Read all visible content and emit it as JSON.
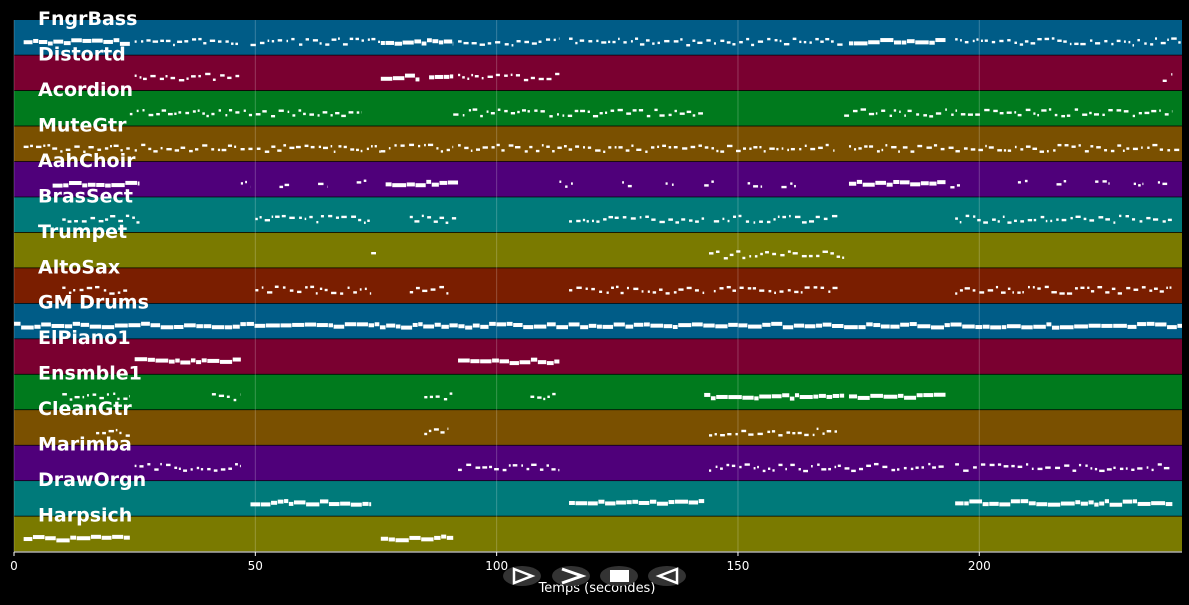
{
  "chart_data": {
    "type": "piano-roll",
    "xlabel": "Temps (secondes)",
    "xlim": [
      0,
      242
    ],
    "xticks": [
      0,
      50,
      100,
      150,
      200
    ],
    "grid": true,
    "tracks": [
      {
        "name": "FngrBass",
        "color": "#005c87",
        "segments": [
          [
            2,
            24,
            "dense"
          ],
          [
            25,
            47,
            "sparse"
          ],
          [
            49,
            76,
            "sparse"
          ],
          [
            76,
            91,
            "dense"
          ],
          [
            92,
            113,
            "sparse"
          ],
          [
            115,
            172,
            "sparse"
          ],
          [
            173,
            193,
            "dense"
          ],
          [
            195,
            242,
            "sparse"
          ]
        ]
      },
      {
        "name": "Distortd",
        "color": "#7a0030",
        "segments": [
          [
            25,
            47,
            "sparse"
          ],
          [
            76,
            84,
            "dense"
          ],
          [
            86,
            91,
            "dense"
          ],
          [
            92,
            113,
            "sparse"
          ],
          [
            238,
            240,
            "sparse"
          ]
        ]
      },
      {
        "name": "Acordion",
        "color": "#007a1d",
        "segments": [
          [
            24,
            72,
            "sparse"
          ],
          [
            91,
            143,
            "sparse"
          ],
          [
            172,
            240,
            "sparse"
          ]
        ]
      },
      {
        "name": "MuteGtr",
        "color": "#7a5000",
        "segments": [
          [
            2,
            24,
            "sparse"
          ],
          [
            25,
            76,
            "sparse"
          ],
          [
            76,
            91,
            "sparse"
          ],
          [
            92,
            170,
            "sparse"
          ],
          [
            173,
            242,
            "sparse"
          ]
        ]
      },
      {
        "name": "AahChoir",
        "color": "#4f007a",
        "segments": [
          [
            8,
            26,
            "dense"
          ],
          [
            47,
            49,
            "sparse"
          ],
          [
            55,
            57,
            "sparse"
          ],
          [
            63,
            65,
            "sparse"
          ],
          [
            71,
            73,
            "sparse"
          ],
          [
            77,
            92,
            "dense"
          ],
          [
            113,
            116,
            "sparse"
          ],
          [
            126,
            128,
            "sparse"
          ],
          [
            135,
            137,
            "sparse"
          ],
          [
            143,
            145,
            "sparse"
          ],
          [
            152,
            155,
            "sparse"
          ],
          [
            159,
            162,
            "sparse"
          ],
          [
            173,
            193,
            "dense"
          ],
          [
            194,
            196,
            "sparse"
          ],
          [
            208,
            210,
            "sparse"
          ],
          [
            216,
            218,
            "sparse"
          ],
          [
            224,
            227,
            "sparse"
          ],
          [
            232,
            234,
            "sparse"
          ],
          [
            237,
            239,
            "sparse"
          ]
        ]
      },
      {
        "name": "BrasSect",
        "color": "#007a7a",
        "segments": [
          [
            10,
            26,
            "sparse"
          ],
          [
            50,
            74,
            "sparse"
          ],
          [
            82,
            92,
            "sparse"
          ],
          [
            115,
            143,
            "sparse"
          ],
          [
            145,
            171,
            "sparse"
          ],
          [
            195,
            240,
            "sparse"
          ]
        ]
      },
      {
        "name": "Trumpet",
        "color": "#7a7a00",
        "segments": [
          [
            74,
            75,
            "sparse"
          ],
          [
            144,
            172,
            "sparse"
          ]
        ]
      },
      {
        "name": "AltoSax",
        "color": "#7a1e00",
        "segments": [
          [
            10,
            24,
            "sparse"
          ],
          [
            50,
            74,
            "sparse"
          ],
          [
            82,
            90,
            "sparse"
          ],
          [
            115,
            143,
            "sparse"
          ],
          [
            145,
            171,
            "sparse"
          ],
          [
            195,
            240,
            "sparse"
          ]
        ]
      },
      {
        "name": "GM Drums",
        "color": "#005c87",
        "segments": [
          [
            0,
            242,
            "dense"
          ]
        ]
      },
      {
        "name": "ElPiano1",
        "color": "#7a0030",
        "segments": [
          [
            25,
            47,
            "dense"
          ],
          [
            92,
            113,
            "dense"
          ]
        ]
      },
      {
        "name": "Ensmble1",
        "color": "#007a1d",
        "segments": [
          [
            10,
            24,
            "sparse"
          ],
          [
            41,
            47,
            "sparse"
          ],
          [
            85,
            91,
            "sparse"
          ],
          [
            107,
            113,
            "sparse"
          ],
          [
            143,
            172,
            "dense"
          ],
          [
            173,
            193,
            "dense"
          ]
        ]
      },
      {
        "name": "CleanGtr",
        "color": "#7a5000",
        "segments": [
          [
            17,
            24,
            "sparse"
          ],
          [
            85,
            90,
            "sparse"
          ],
          [
            144,
            171,
            "sparse"
          ]
        ]
      },
      {
        "name": "Marimba",
        "color": "#4f007a",
        "segments": [
          [
            25,
            47,
            "sparse"
          ],
          [
            92,
            113,
            "sparse"
          ],
          [
            144,
            193,
            "sparse"
          ],
          [
            195,
            240,
            "sparse"
          ]
        ]
      },
      {
        "name": "DrawOrgn",
        "color": "#007a7a",
        "segments": [
          [
            49,
            74,
            "dense"
          ],
          [
            115,
            143,
            "dense"
          ],
          [
            195,
            240,
            "dense"
          ]
        ]
      },
      {
        "name": "Harpsich",
        "color": "#7a7a00",
        "segments": [
          [
            2,
            24,
            "dense"
          ],
          [
            76,
            91,
            "dense"
          ]
        ]
      }
    ]
  },
  "controls": {
    "buttons": [
      {
        "name": "play-reverse-button",
        "icon": "play-outline-icon"
      },
      {
        "name": "next-button",
        "icon": "chevron-right-icon"
      },
      {
        "name": "stop-button",
        "icon": "stop-icon"
      },
      {
        "name": "back-button",
        "icon": "play-left-outline-icon"
      }
    ]
  }
}
